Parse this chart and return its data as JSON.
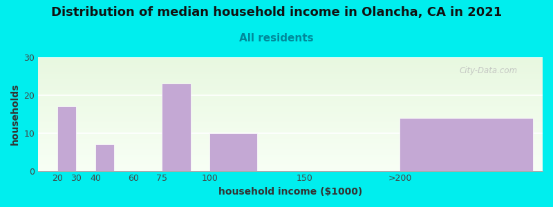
{
  "title": "Distribution of median household income in Olancha, CA in 2021",
  "subtitle": "All residents",
  "xlabel": "household income ($1000)",
  "ylabel": "households",
  "background_color": "#00EEEE",
  "bar_color": "#C4A8D4",
  "values": [
    17,
    0,
    7,
    0,
    23,
    10,
    0,
    14
  ],
  "positions": [
    20,
    30,
    40,
    60,
    75,
    100,
    150,
    200
  ],
  "widths": [
    10,
    0,
    10,
    0,
    15,
    25,
    50,
    70
  ],
  "ylim": [
    0,
    30
  ],
  "yticks": [
    0,
    10,
    20,
    30
  ],
  "xtick_labels": [
    "20",
    "30",
    "40",
    "60",
    "75",
    "100",
    "150",
    ">200"
  ],
  "xtick_positions": [
    20,
    30,
    40,
    60,
    75,
    100,
    150,
    200
  ],
  "title_fontsize": 13,
  "subtitle_fontsize": 11,
  "axis_label_fontsize": 10,
  "watermark": "City-Data.com",
  "xlim": [
    10,
    275
  ]
}
